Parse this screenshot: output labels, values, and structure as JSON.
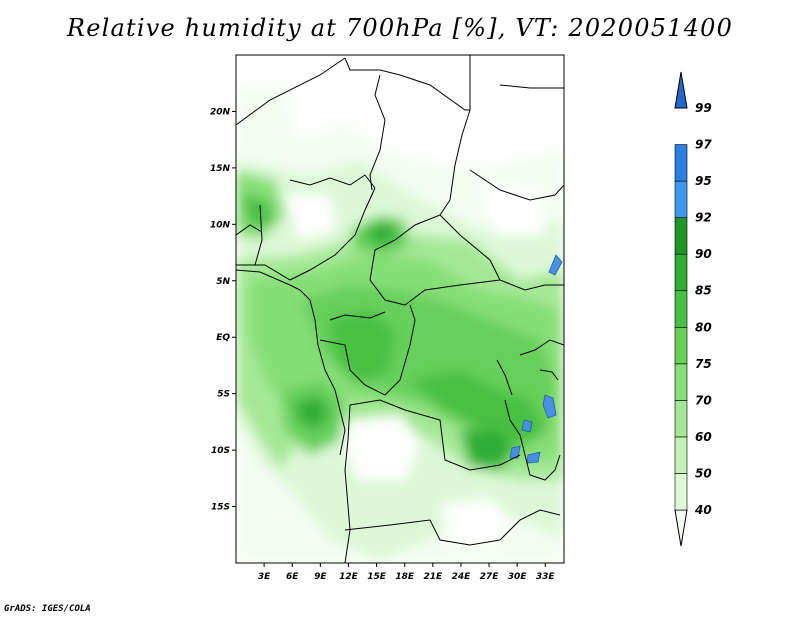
{
  "title": "Relative humidity at 700hPa [%], VT: 2020051400",
  "credit": "GrADS: IGES/COLA",
  "map": {
    "lon_range": [
      0,
      35
    ],
    "lat_range": [
      -20,
      25
    ],
    "lon_ticks": [
      "3E",
      "6E",
      "9E",
      "12E",
      "15E",
      "18E",
      "21E",
      "24E",
      "27E",
      "30E",
      "33E"
    ],
    "lat_ticks": [
      "20N",
      "15N",
      "10N",
      "5N",
      "EQ",
      "5S",
      "10S",
      "15S"
    ],
    "field_colors": {
      "40-50": "#f2fdf0",
      "50-60": "#dcf8d6",
      "60-70": "#c2f1b8",
      "70-75": "#a4e895",
      "75-80": "#86de76",
      "80-85": "#66d05a",
      "85-90": "#48c043",
      "90-92": "#2fae34",
      "92-95": "#1d9628",
      "lakes": "#4a90e2",
      "border": "#000000"
    }
  },
  "colorbar": {
    "labels": [
      "99",
      "97",
      "95",
      "92",
      "90",
      "85",
      "80",
      "75",
      "70",
      "60",
      "50",
      "40"
    ],
    "colors": [
      "#f2fdf0",
      "#dcf8d6",
      "#c2f1b8",
      "#a4e895",
      "#86de76",
      "#66d05a",
      "#48c043",
      "#2fae34",
      "#1d9628",
      "#3d97ec",
      "#2b7fe0",
      "#1f68cc"
    ]
  }
}
